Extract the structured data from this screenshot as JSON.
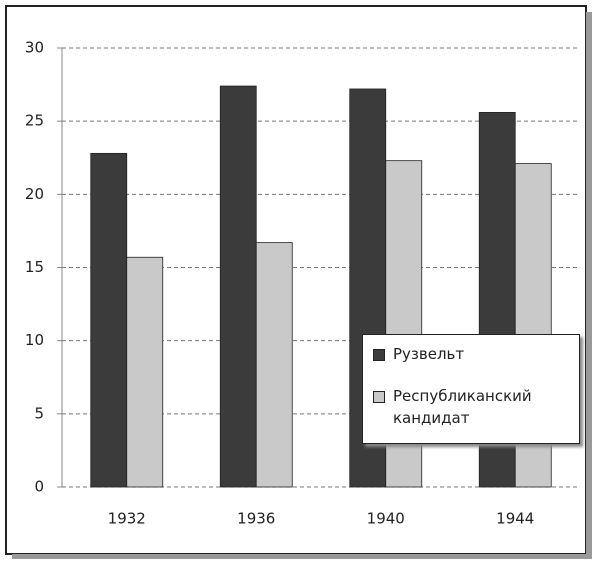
{
  "chart_data": {
    "type": "bar",
    "categories": [
      "1932",
      "1936",
      "1940",
      "1944"
    ],
    "series": [
      {
        "name": "Рузвельт",
        "color": "#3b3b3b",
        "values": [
          22.8,
          27.4,
          27.2,
          25.6
        ]
      },
      {
        "name": "Республиканский кандидат",
        "color": "#c9c9c9",
        "values": [
          15.7,
          16.7,
          22.3,
          22.1
        ]
      }
    ],
    "ylim": [
      0,
      30
    ],
    "yticks": [
      0,
      5,
      10,
      15,
      20,
      25,
      30
    ],
    "grid": true
  }
}
